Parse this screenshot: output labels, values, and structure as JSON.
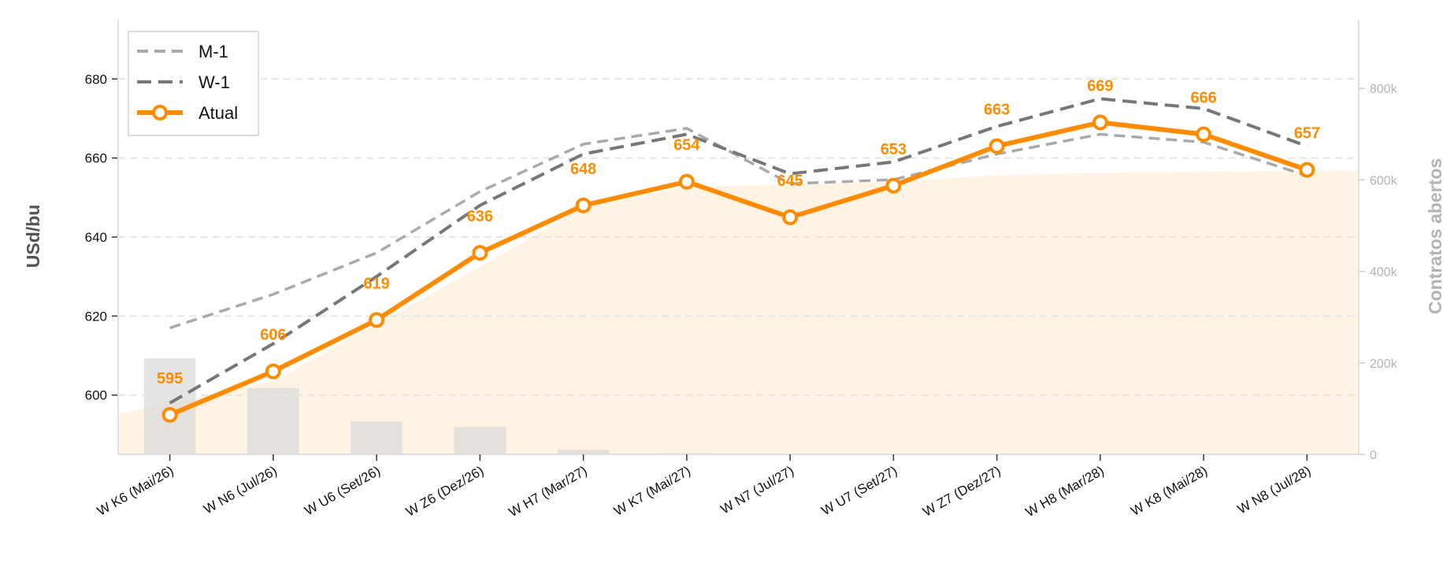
{
  "chart_data": {
    "type": "line",
    "categories": [
      "W K6 (Mai/26)",
      "W N6 (Jul/26)",
      "W U6 (Set/26)",
      "W Z6 (Dez/26)",
      "W H7 (Mar/27)",
      "W K7 (Mai/27)",
      "W N7 (Jul/27)",
      "W U7 (Set/27)",
      "W Z7 (Dez/27)",
      "W H8 (Mar/28)",
      "W K8 (Mai/28)",
      "W N8 (Jul/28)"
    ],
    "series": [
      {
        "name": "M-1",
        "values": [
          617,
          625.5,
          636,
          651.5,
          663.5,
          667.5,
          653.5,
          654.5,
          661,
          666,
          664,
          655.5
        ],
        "color": "#aaaaaa",
        "style": "dashed"
      },
      {
        "name": "W-1",
        "values": [
          598,
          613,
          630,
          648,
          661,
          666,
          656,
          659,
          668,
          675,
          672.5,
          663
        ],
        "color": "#777777",
        "style": "dashed"
      },
      {
        "name": "Atual",
        "values": [
          595,
          606,
          619,
          636,
          648,
          654,
          645,
          653,
          663,
          669,
          666,
          657
        ],
        "color": "#ff8c00",
        "style": "solid-markers"
      }
    ],
    "data_labels": [
      "595",
      "606",
      "619",
      "636",
      "648",
      "654",
      "645",
      "653",
      "663",
      "669",
      "666",
      "657"
    ],
    "open_interest": {
      "label": "Contratos abertos",
      "bars": [
        210000,
        145000,
        72000,
        60000,
        10000,
        3000,
        1000,
        500,
        300,
        200,
        200,
        100
      ],
      "area": [
        88000,
        160000,
        285000,
        410000,
        540000,
        585000,
        590000,
        595000,
        610000,
        615000,
        618000,
        620000
      ],
      "bar_color": "#d8d8d8",
      "area_color": "#fff3e3",
      "ylim": [
        0,
        950000
      ],
      "ticks": [
        0,
        200000,
        400000,
        600000,
        800000
      ],
      "tick_labels": [
        "0",
        "200k",
        "400k",
        "600k",
        "800k"
      ]
    },
    "xlabel": "",
    "ylabel": "USd/bu",
    "ylim": [
      585,
      695
    ],
    "yticks": [
      600,
      620,
      640,
      660,
      680
    ],
    "grid": true,
    "legend_position": "top-left"
  }
}
